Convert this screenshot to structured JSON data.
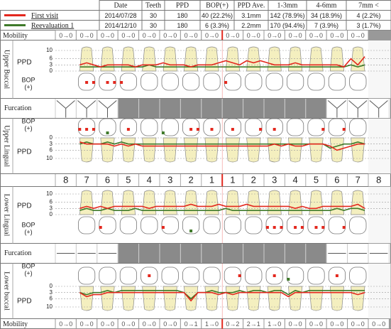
{
  "header": {
    "columns": [
      "Date",
      "Teeth",
      "PPD",
      "BOP(+)",
      "PPD Ave.",
      "1-3mm",
      "4-6mm",
      "7mm <"
    ],
    "rows": [
      {
        "legend": "First visit",
        "color": "#e3281e",
        "cells": [
          "2014/07/28",
          "30",
          "180",
          "40 (22.2%)",
          "3.1mm",
          "142 (78.9%)",
          "34 (18.9%)",
          "4 (2.2%)"
        ]
      },
      {
        "legend": "Reevaluation 1",
        "color": "#3f7a2a",
        "cells": [
          "2014/12/10",
          "30",
          "180",
          "6 (3.3%)",
          "2.2mm",
          "170 (94.4%)",
          "7 (3.9%)",
          "3 (1.7%)"
        ]
      }
    ]
  },
  "mobility_top": {
    "label": "Mobility",
    "values": [
      "0→0",
      "0→0",
      "0→0",
      "0→0",
      "0→0",
      "0→0",
      "0→0",
      "0→0",
      "0→0",
      "0→0",
      "0→0",
      "0→0",
      "0→0",
      "0→0",
      "0→0"
    ]
  },
  "mobility_bottom": {
    "label": "Mobility",
    "values": [
      "0→0",
      "0→0",
      "0→0",
      "0→0",
      "0→0",
      "0→0",
      "0→1",
      "1→0",
      "0→2",
      "2→1",
      "1→0",
      "0→0",
      "0→0",
      "0→0",
      "0→0",
      "0→0"
    ]
  },
  "furcation_labels": [
    "Furcation",
    "Furcation"
  ],
  "tooth_numbers": [
    "8",
    "7",
    "6",
    "5",
    "4",
    "3",
    "2",
    "1",
    "1",
    "2",
    "3",
    "4",
    "5",
    "6",
    "7",
    "8"
  ],
  "sections": [
    {
      "title": "Upper Buccal",
      "ppd_label": "PPD",
      "bop_label": [
        "BOP",
        "(+)"
      ],
      "yticks": [
        10,
        6,
        3,
        0
      ],
      "first": [
        null,
        null,
        null,
        3,
        4,
        3,
        2,
        3,
        3,
        3,
        3,
        2,
        3,
        3,
        3,
        4,
        3,
        3,
        3,
        2,
        3,
        3,
        3,
        4,
        5,
        4,
        3,
        5,
        4,
        5,
        4,
        3,
        3,
        3,
        4,
        3,
        3,
        3,
        3,
        3,
        3,
        2,
        6,
        3,
        7,
        null,
        null,
        null
      ],
      "reeval": [
        null,
        null,
        null,
        2,
        2,
        2,
        2,
        2,
        2,
        2,
        2,
        2,
        2,
        3,
        2,
        2,
        2,
        2,
        2,
        2,
        2,
        2,
        2,
        2,
        2,
        2,
        2,
        2,
        2,
        2,
        2,
        2,
        2,
        2,
        2,
        2,
        2,
        2,
        2,
        2,
        2,
        2,
        3,
        2,
        3,
        null,
        null,
        null
      ],
      "bop_first": [
        4,
        5,
        7,
        8,
        9,
        24
      ],
      "bop_reeval": []
    },
    {
      "title": "Upper Lingual",
      "ppd_label": "PPD",
      "bop_label": [
        "BOP",
        "(+)"
      ],
      "yticks": [
        0,
        3,
        6,
        10
      ],
      "first": [
        null,
        null,
        null,
        2,
        3,
        3,
        3,
        3,
        4,
        3,
        4,
        3,
        4,
        4,
        4,
        4,
        4,
        4,
        4,
        4,
        4,
        4,
        4,
        4,
        4,
        4,
        4,
        4,
        4,
        4,
        4,
        3,
        4,
        3,
        4,
        4,
        3,
        3,
        3,
        4,
        6,
        5,
        4,
        3,
        3,
        null,
        null,
        null
      ],
      "reeval": [
        null,
        null,
        null,
        3,
        2,
        3,
        3,
        2,
        3,
        2,
        3,
        3,
        3,
        3,
        3,
        3,
        3,
        3,
        3,
        3,
        3,
        3,
        3,
        3,
        3,
        3,
        3,
        3,
        3,
        3,
        3,
        3,
        3,
        3,
        3,
        3,
        3,
        3,
        3,
        5,
        4,
        3,
        3,
        2,
        3,
        null,
        null,
        null
      ],
      "bop_first": [
        3,
        4,
        5,
        10,
        19,
        20,
        22,
        25,
        29,
        31,
        38,
        41
      ],
      "bop_reeval": [
        7,
        15
      ]
    },
    {
      "title": "Lower Lingual",
      "ppd_label": "PPD",
      "bop_label": [
        "BOP",
        "(+)"
      ],
      "yticks": [
        10,
        6,
        3,
        0
      ],
      "first": [
        null,
        null,
        null,
        3,
        4,
        3,
        4,
        3,
        4,
        4,
        4,
        4,
        4,
        3,
        4,
        4,
        4,
        4,
        4,
        5,
        4,
        4,
        4,
        5,
        4,
        4,
        4,
        5,
        4,
        4,
        4,
        4,
        4,
        4,
        3,
        4,
        3,
        3,
        4,
        4,
        4,
        4,
        4,
        5,
        3,
        null,
        null,
        null
      ],
      "reeval": [
        null,
        null,
        null,
        2,
        3,
        2,
        2,
        3,
        2,
        2,
        2,
        3,
        2,
        2,
        2,
        2,
        2,
        2,
        2,
        2,
        2,
        2,
        2,
        2,
        3,
        2,
        2,
        2,
        2,
        2,
        2,
        2,
        2,
        2,
        2,
        2,
        2,
        2,
        2,
        2,
        3,
        2,
        3,
        3,
        2,
        null,
        null,
        null
      ],
      "bop_first": [
        6,
        15,
        30,
        31,
        32,
        34,
        35,
        37,
        38,
        41
      ],
      "bop_reeval": [
        19
      ]
    },
    {
      "title": "Lower buccal",
      "ppd_label": "PPD",
      "bop_label": [
        "BOP",
        "(+)"
      ],
      "yticks": [
        0,
        3,
        6,
        10
      ],
      "first": [
        null,
        null,
        null,
        3,
        5,
        4,
        4,
        3,
        3,
        3,
        3,
        3,
        3,
        3,
        3,
        3,
        3,
        3,
        3,
        7,
        3,
        3,
        3,
        4,
        3,
        4,
        3,
        3,
        3,
        3,
        3,
        3,
        3,
        5,
        3,
        3,
        3,
        3,
        3,
        3,
        3,
        3,
        3,
        4,
        3,
        null,
        null,
        null
      ],
      "reeval": [
        null,
        null,
        null,
        3,
        4,
        3,
        3,
        2,
        3,
        2,
        2,
        2,
        2,
        2,
        2,
        2,
        2,
        2,
        3,
        6,
        3,
        3,
        2,
        3,
        3,
        3,
        2,
        3,
        2,
        2,
        3,
        2,
        2,
        4,
        2,
        3,
        2,
        2,
        2,
        2,
        2,
        2,
        2,
        2,
        2,
        null,
        null,
        null
      ],
      "bop_first": [
        13,
        26,
        31,
        40
      ],
      "bop_reeval": [
        33
      ]
    }
  ]
}
